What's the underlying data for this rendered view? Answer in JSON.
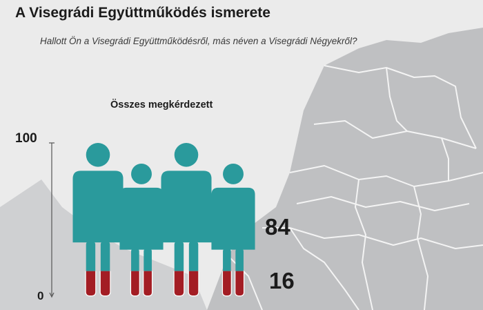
{
  "page": {
    "title": "A Visegrádi Együttműködés ismerete",
    "subtitle": "Hallott Ön a Visegrádi Együttműködésről, más néven a Visegrádi Négyekről?",
    "colors": {
      "background": "#ebebeb",
      "map_land": "#bfc0c2",
      "map_lines": "#f2f2f2",
      "yes_color": "#2a9a9c",
      "no_color": "#a31d24",
      "text": "#1b1b1b"
    }
  },
  "chart_data": {
    "type": "bar",
    "title": "Összes megkérdezett",
    "categories": [
      "Összes megkérdezett"
    ],
    "series": [
      {
        "values": [
          84
        ],
        "color": "#2a9a9c"
      },
      {
        "values": [
          16
        ],
        "color": "#a31d24"
      }
    ],
    "value_labels": [
      "84",
      "16"
    ],
    "ylim": [
      0,
      100
    ],
    "yticks": [
      "100",
      "0"
    ],
    "icon": "person-icon"
  }
}
